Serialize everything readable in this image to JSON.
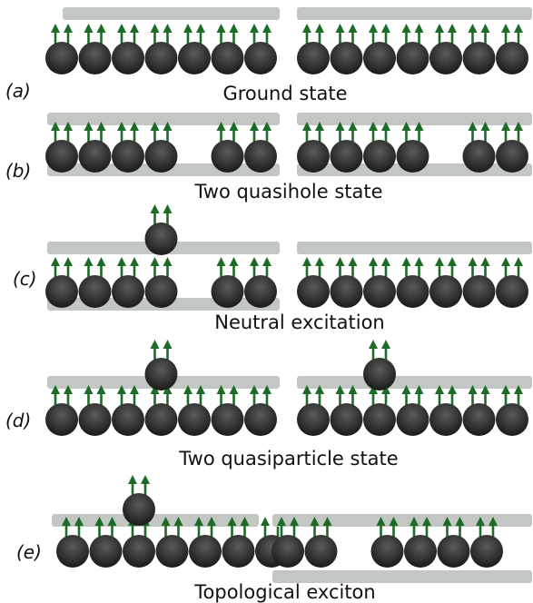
{
  "colors": {
    "sphere_dark": "#1c1c1c",
    "sphere_light": "#5a5a5a",
    "arrow": "#1c6b26",
    "bar": "#c3c7c3"
  },
  "panels": [
    {
      "label": "(a)",
      "caption": "Ground state",
      "subsystems": [
        {
          "raised_bar": true,
          "lower_bar": false,
          "lattice": [
            1,
            1,
            1,
            1,
            1,
            1,
            1
          ],
          "lifted_sites": []
        },
        {
          "raised_bar": true,
          "lower_bar": false,
          "lattice": [
            1,
            1,
            1,
            1,
            1,
            1,
            1
          ],
          "lifted_sites": []
        }
      ]
    },
    {
      "label": "(b)",
      "caption": "Two quasihole state",
      "subsystems": [
        {
          "raised_bar": true,
          "lower_bar": true,
          "lattice": [
            1,
            1,
            1,
            1,
            0,
            1,
            1
          ],
          "lifted_sites": []
        },
        {
          "raised_bar": true,
          "lower_bar": true,
          "lattice": [
            1,
            1,
            1,
            1,
            0,
            1,
            1
          ],
          "lifted_sites": []
        }
      ]
    },
    {
      "label": "(c)",
      "caption": "Neutral excitation",
      "subsystems": [
        {
          "raised_bar": true,
          "lower_bar": true,
          "lattice": [
            1,
            1,
            1,
            1,
            0,
            1,
            1
          ],
          "lifted_sites": [
            3
          ]
        },
        {
          "raised_bar": true,
          "lower_bar": false,
          "lattice": [
            1,
            1,
            1,
            1,
            1,
            1,
            1
          ],
          "lifted_sites": []
        }
      ]
    },
    {
      "label": "(d)",
      "caption": "Two quasiparticle state",
      "subsystems": [
        {
          "raised_bar": true,
          "lower_bar": false,
          "lattice": [
            1,
            1,
            1,
            1,
            1,
            1,
            1
          ],
          "lifted_sites": [
            3
          ]
        },
        {
          "raised_bar": true,
          "lower_bar": false,
          "lattice": [
            1,
            1,
            1,
            1,
            1,
            1,
            1
          ],
          "lifted_sites": [
            2
          ]
        }
      ]
    },
    {
      "label": "(e)",
      "caption": "Topological exciton",
      "subsystems": [
        {
          "raised_bar": true,
          "lower_bar": false,
          "lattice": [
            1,
            1,
            1,
            1,
            1,
            1,
            1
          ],
          "lifted_sites": [
            2
          ]
        },
        {
          "raised_bar": true,
          "lower_bar": true,
          "lattice": [
            1,
            1,
            0,
            1,
            1,
            1,
            1
          ],
          "lifted_sites": []
        }
      ]
    }
  ]
}
